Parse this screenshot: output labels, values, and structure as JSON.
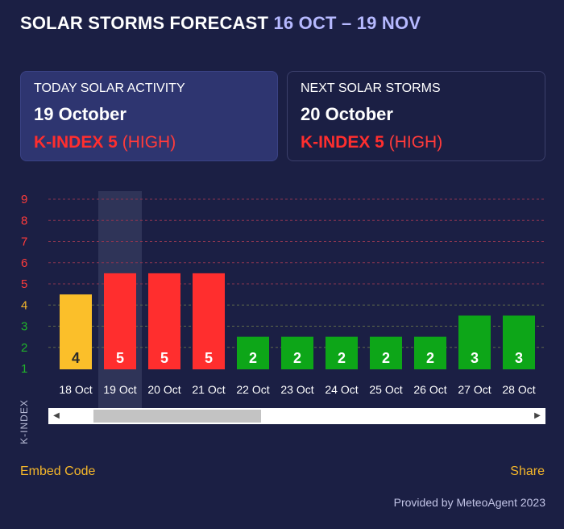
{
  "header": {
    "title": "SOLAR STORMS FORECAST",
    "range": "16 OCT – 19 NOV"
  },
  "today_card": {
    "label": "TODAY SOLAR ACTIVITY",
    "date": "19 October",
    "k_label": "K-INDEX 5",
    "level": "(HIGH)"
  },
  "next_card": {
    "label": "NEXT SOLAR STORMS",
    "date": "20 October",
    "k_label": "K-INDEX 5",
    "level": "(HIGH)"
  },
  "chart_data": {
    "type": "bar",
    "ylabel": "K-INDEX",
    "ylim": [
      1,
      9
    ],
    "yticks": [
      1,
      2,
      3,
      4,
      5,
      6,
      7,
      8,
      9
    ],
    "categories": [
      "18 Oct",
      "19 Oct",
      "20 Oct",
      "21 Oct",
      "22 Oct",
      "23 Oct",
      "24 Oct",
      "25 Oct",
      "26 Oct",
      "27 Oct",
      "28 Oct"
    ],
    "values": [
      4,
      5,
      5,
      5,
      2,
      2,
      2,
      2,
      2,
      3,
      3
    ],
    "highlight": "19 Oct",
    "colors": {
      "low": "#0da618",
      "moderate": "#fbbf2a",
      "high": "#ff2e2e",
      "tick_low": "#20b52a",
      "tick_moderate": "#f5b72a",
      "tick_high": "#ff3b3b"
    }
  },
  "scrollbar": {
    "left_icon": "arrow-left-icon",
    "right_icon": "arrow-right-icon"
  },
  "footer": {
    "embed": "Embed Code",
    "share": "Share",
    "provided": "Provided by MeteoAgent 2023"
  }
}
